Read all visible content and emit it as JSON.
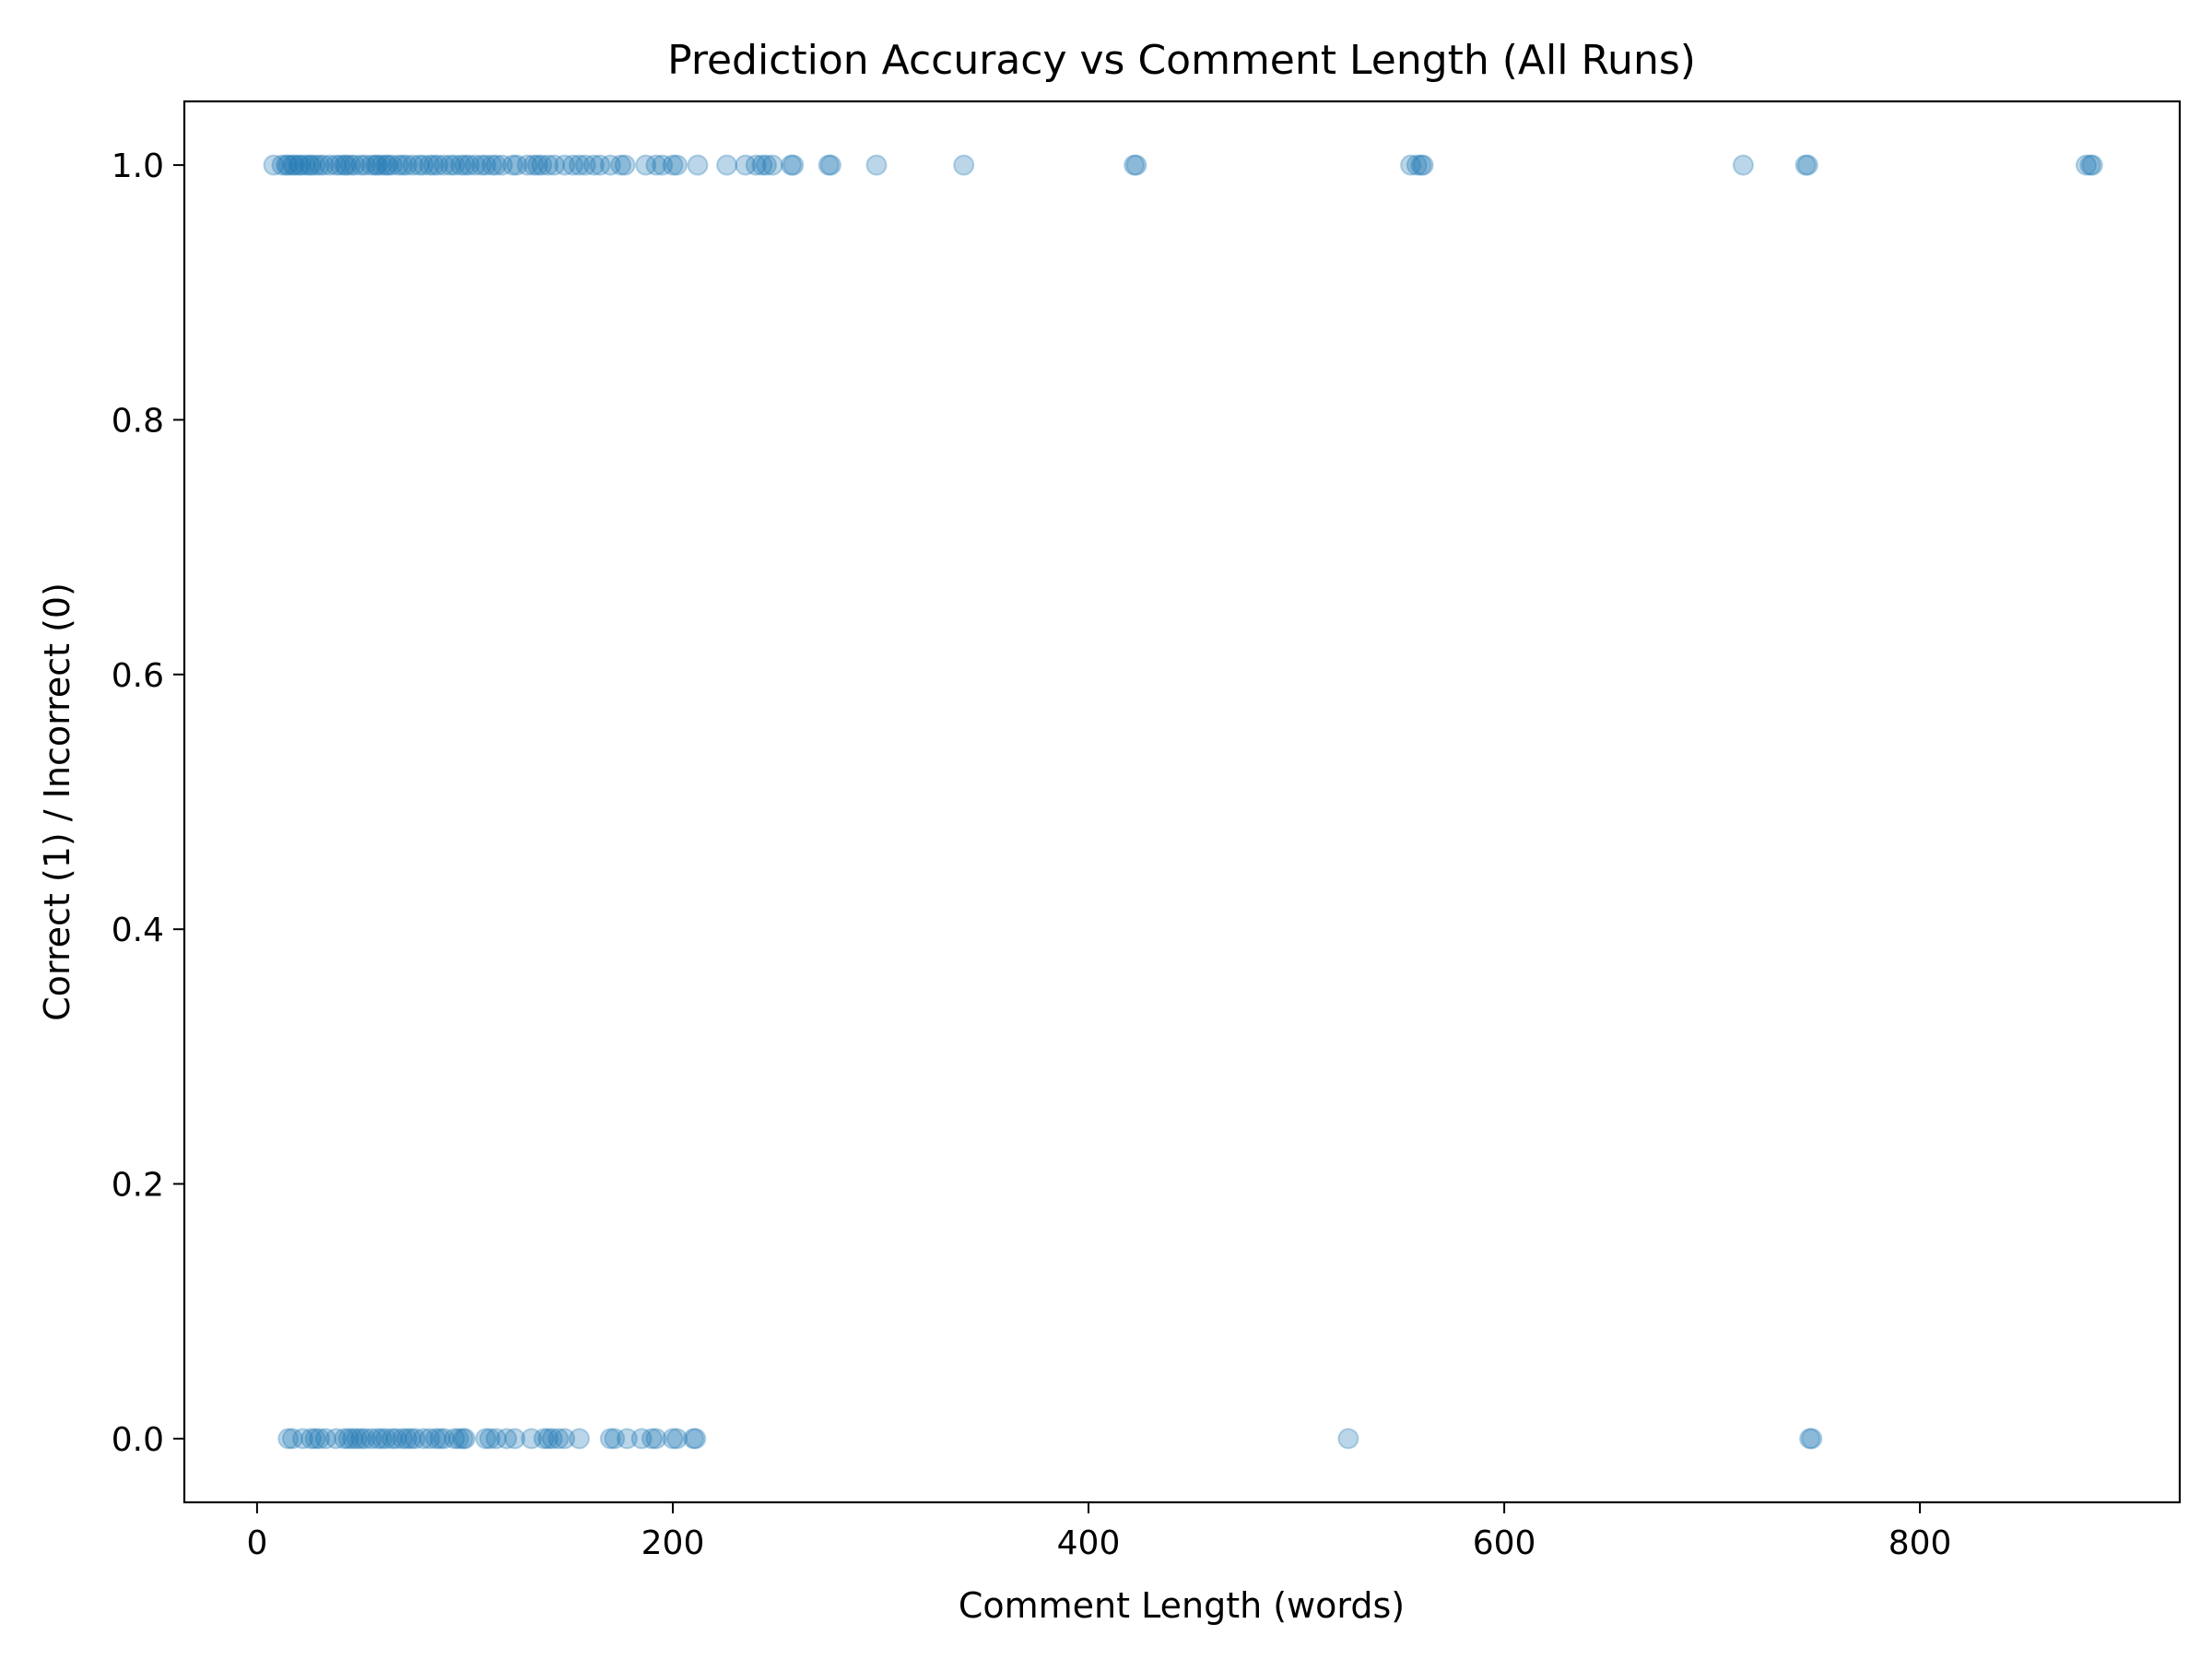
{
  "chart_data": {
    "type": "scatter",
    "title": "Prediction Accuracy vs Comment Length (All Runs)",
    "xlabel": "Comment Length (words)",
    "ylabel": "Correct (1) / Incorrect (0)",
    "xlim": [
      -35,
      925
    ],
    "ylim": [
      -0.05,
      1.05
    ],
    "xticks": [
      0,
      200,
      400,
      600,
      800
    ],
    "yticks": [
      0.0,
      0.2,
      0.4,
      0.6,
      0.8,
      1.0
    ],
    "xtick_labels": [
      "0",
      "200",
      "400",
      "600",
      "800"
    ],
    "ytick_labels": [
      "0.0",
      "0.2",
      "0.4",
      "0.6",
      "0.8",
      "1.0"
    ],
    "grid": false,
    "legend": "none",
    "marker_color": "#1f77b4",
    "marker_alpha": 0.3,
    "points": [
      {
        "x": 8,
        "y": 1
      },
      {
        "x": 12,
        "y": 1
      },
      {
        "x": 14,
        "y": 1
      },
      {
        "x": 15,
        "y": 1
      },
      {
        "x": 17,
        "y": 1
      },
      {
        "x": 18,
        "y": 1
      },
      {
        "x": 20,
        "y": 1
      },
      {
        "x": 21,
        "y": 1
      },
      {
        "x": 23,
        "y": 1
      },
      {
        "x": 25,
        "y": 1
      },
      {
        "x": 26,
        "y": 1
      },
      {
        "x": 28,
        "y": 1
      },
      {
        "x": 30,
        "y": 1
      },
      {
        "x": 32,
        "y": 1
      },
      {
        "x": 35,
        "y": 1
      },
      {
        "x": 38,
        "y": 1
      },
      {
        "x": 40,
        "y": 1
      },
      {
        "x": 42,
        "y": 1
      },
      {
        "x": 43,
        "y": 1
      },
      {
        "x": 45,
        "y": 1
      },
      {
        "x": 47,
        "y": 1
      },
      {
        "x": 50,
        "y": 1
      },
      {
        "x": 52,
        "y": 1
      },
      {
        "x": 55,
        "y": 1
      },
      {
        "x": 57,
        "y": 1
      },
      {
        "x": 58,
        "y": 1
      },
      {
        "x": 60,
        "y": 1
      },
      {
        "x": 62,
        "y": 1
      },
      {
        "x": 63,
        "y": 1
      },
      {
        "x": 65,
        "y": 1
      },
      {
        "x": 68,
        "y": 1
      },
      {
        "x": 70,
        "y": 1
      },
      {
        "x": 72,
        "y": 1
      },
      {
        "x": 75,
        "y": 1
      },
      {
        "x": 78,
        "y": 1
      },
      {
        "x": 80,
        "y": 1
      },
      {
        "x": 83,
        "y": 1
      },
      {
        "x": 85,
        "y": 1
      },
      {
        "x": 87,
        "y": 1
      },
      {
        "x": 90,
        "y": 1
      },
      {
        "x": 93,
        "y": 1
      },
      {
        "x": 95,
        "y": 1
      },
      {
        "x": 98,
        "y": 1
      },
      {
        "x": 100,
        "y": 1
      },
      {
        "x": 102,
        "y": 1
      },
      {
        "x": 105,
        "y": 1
      },
      {
        "x": 108,
        "y": 1
      },
      {
        "x": 110,
        "y": 1
      },
      {
        "x": 113,
        "y": 1
      },
      {
        "x": 115,
        "y": 1
      },
      {
        "x": 118,
        "y": 1
      },
      {
        "x": 123,
        "y": 1
      },
      {
        "x": 125,
        "y": 1
      },
      {
        "x": 130,
        "y": 1
      },
      {
        "x": 133,
        "y": 1
      },
      {
        "x": 135,
        "y": 1
      },
      {
        "x": 137,
        "y": 1
      },
      {
        "x": 140,
        "y": 1
      },
      {
        "x": 143,
        "y": 1
      },
      {
        "x": 148,
        "y": 1
      },
      {
        "x": 152,
        "y": 1
      },
      {
        "x": 155,
        "y": 1
      },
      {
        "x": 158,
        "y": 1
      },
      {
        "x": 162,
        "y": 1
      },
      {
        "x": 165,
        "y": 1
      },
      {
        "x": 170,
        "y": 1
      },
      {
        "x": 175,
        "y": 1
      },
      {
        "x": 177,
        "y": 1
      },
      {
        "x": 187,
        "y": 1
      },
      {
        "x": 192,
        "y": 1
      },
      {
        "x": 195,
        "y": 1
      },
      {
        "x": 200,
        "y": 1
      },
      {
        "x": 202,
        "y": 1
      },
      {
        "x": 212,
        "y": 1
      },
      {
        "x": 226,
        "y": 1
      },
      {
        "x": 235,
        "y": 1
      },
      {
        "x": 240,
        "y": 1
      },
      {
        "x": 243,
        "y": 1
      },
      {
        "x": 245,
        "y": 1
      },
      {
        "x": 248,
        "y": 1
      },
      {
        "x": 257,
        "y": 1
      },
      {
        "x": 258,
        "y": 1
      },
      {
        "x": 275,
        "y": 1
      },
      {
        "x": 276,
        "y": 1
      },
      {
        "x": 298,
        "y": 1
      },
      {
        "x": 340,
        "y": 1
      },
      {
        "x": 422,
        "y": 1
      },
      {
        "x": 423,
        "y": 1
      },
      {
        "x": 555,
        "y": 1
      },
      {
        "x": 558,
        "y": 1
      },
      {
        "x": 560,
        "y": 1
      },
      {
        "x": 561,
        "y": 1
      },
      {
        "x": 715,
        "y": 1
      },
      {
        "x": 745,
        "y": 1
      },
      {
        "x": 746,
        "y": 1
      },
      {
        "x": 880,
        "y": 1
      },
      {
        "x": 882,
        "y": 1
      },
      {
        "x": 883,
        "y": 1
      },
      {
        "x": 15,
        "y": 0
      },
      {
        "x": 17,
        "y": 0
      },
      {
        "x": 22,
        "y": 0
      },
      {
        "x": 26,
        "y": 0
      },
      {
        "x": 28,
        "y": 0
      },
      {
        "x": 30,
        "y": 0
      },
      {
        "x": 33,
        "y": 0
      },
      {
        "x": 38,
        "y": 0
      },
      {
        "x": 42,
        "y": 0
      },
      {
        "x": 44,
        "y": 0
      },
      {
        "x": 46,
        "y": 0
      },
      {
        "x": 48,
        "y": 0
      },
      {
        "x": 50,
        "y": 0
      },
      {
        "x": 52,
        "y": 0
      },
      {
        "x": 55,
        "y": 0
      },
      {
        "x": 58,
        "y": 0
      },
      {
        "x": 60,
        "y": 0
      },
      {
        "x": 62,
        "y": 0
      },
      {
        "x": 65,
        "y": 0
      },
      {
        "x": 67,
        "y": 0
      },
      {
        "x": 70,
        "y": 0
      },
      {
        "x": 72,
        "y": 0
      },
      {
        "x": 74,
        "y": 0
      },
      {
        "x": 76,
        "y": 0
      },
      {
        "x": 80,
        "y": 0
      },
      {
        "x": 83,
        "y": 0
      },
      {
        "x": 86,
        "y": 0
      },
      {
        "x": 88,
        "y": 0
      },
      {
        "x": 90,
        "y": 0
      },
      {
        "x": 95,
        "y": 0
      },
      {
        "x": 97,
        "y": 0
      },
      {
        "x": 99,
        "y": 0
      },
      {
        "x": 100,
        "y": 0
      },
      {
        "x": 110,
        "y": 0
      },
      {
        "x": 112,
        "y": 0
      },
      {
        "x": 115,
        "y": 0
      },
      {
        "x": 120,
        "y": 0
      },
      {
        "x": 124,
        "y": 0
      },
      {
        "x": 132,
        "y": 0
      },
      {
        "x": 138,
        "y": 0
      },
      {
        "x": 140,
        "y": 0
      },
      {
        "x": 142,
        "y": 0
      },
      {
        "x": 145,
        "y": 0
      },
      {
        "x": 148,
        "y": 0
      },
      {
        "x": 155,
        "y": 0
      },
      {
        "x": 170,
        "y": 0
      },
      {
        "x": 172,
        "y": 0
      },
      {
        "x": 178,
        "y": 0
      },
      {
        "x": 185,
        "y": 0
      },
      {
        "x": 190,
        "y": 0
      },
      {
        "x": 192,
        "y": 0
      },
      {
        "x": 200,
        "y": 0
      },
      {
        "x": 202,
        "y": 0
      },
      {
        "x": 210,
        "y": 0
      },
      {
        "x": 211,
        "y": 0
      },
      {
        "x": 525,
        "y": 0
      },
      {
        "x": 747,
        "y": 0
      },
      {
        "x": 748,
        "y": 0
      }
    ]
  }
}
